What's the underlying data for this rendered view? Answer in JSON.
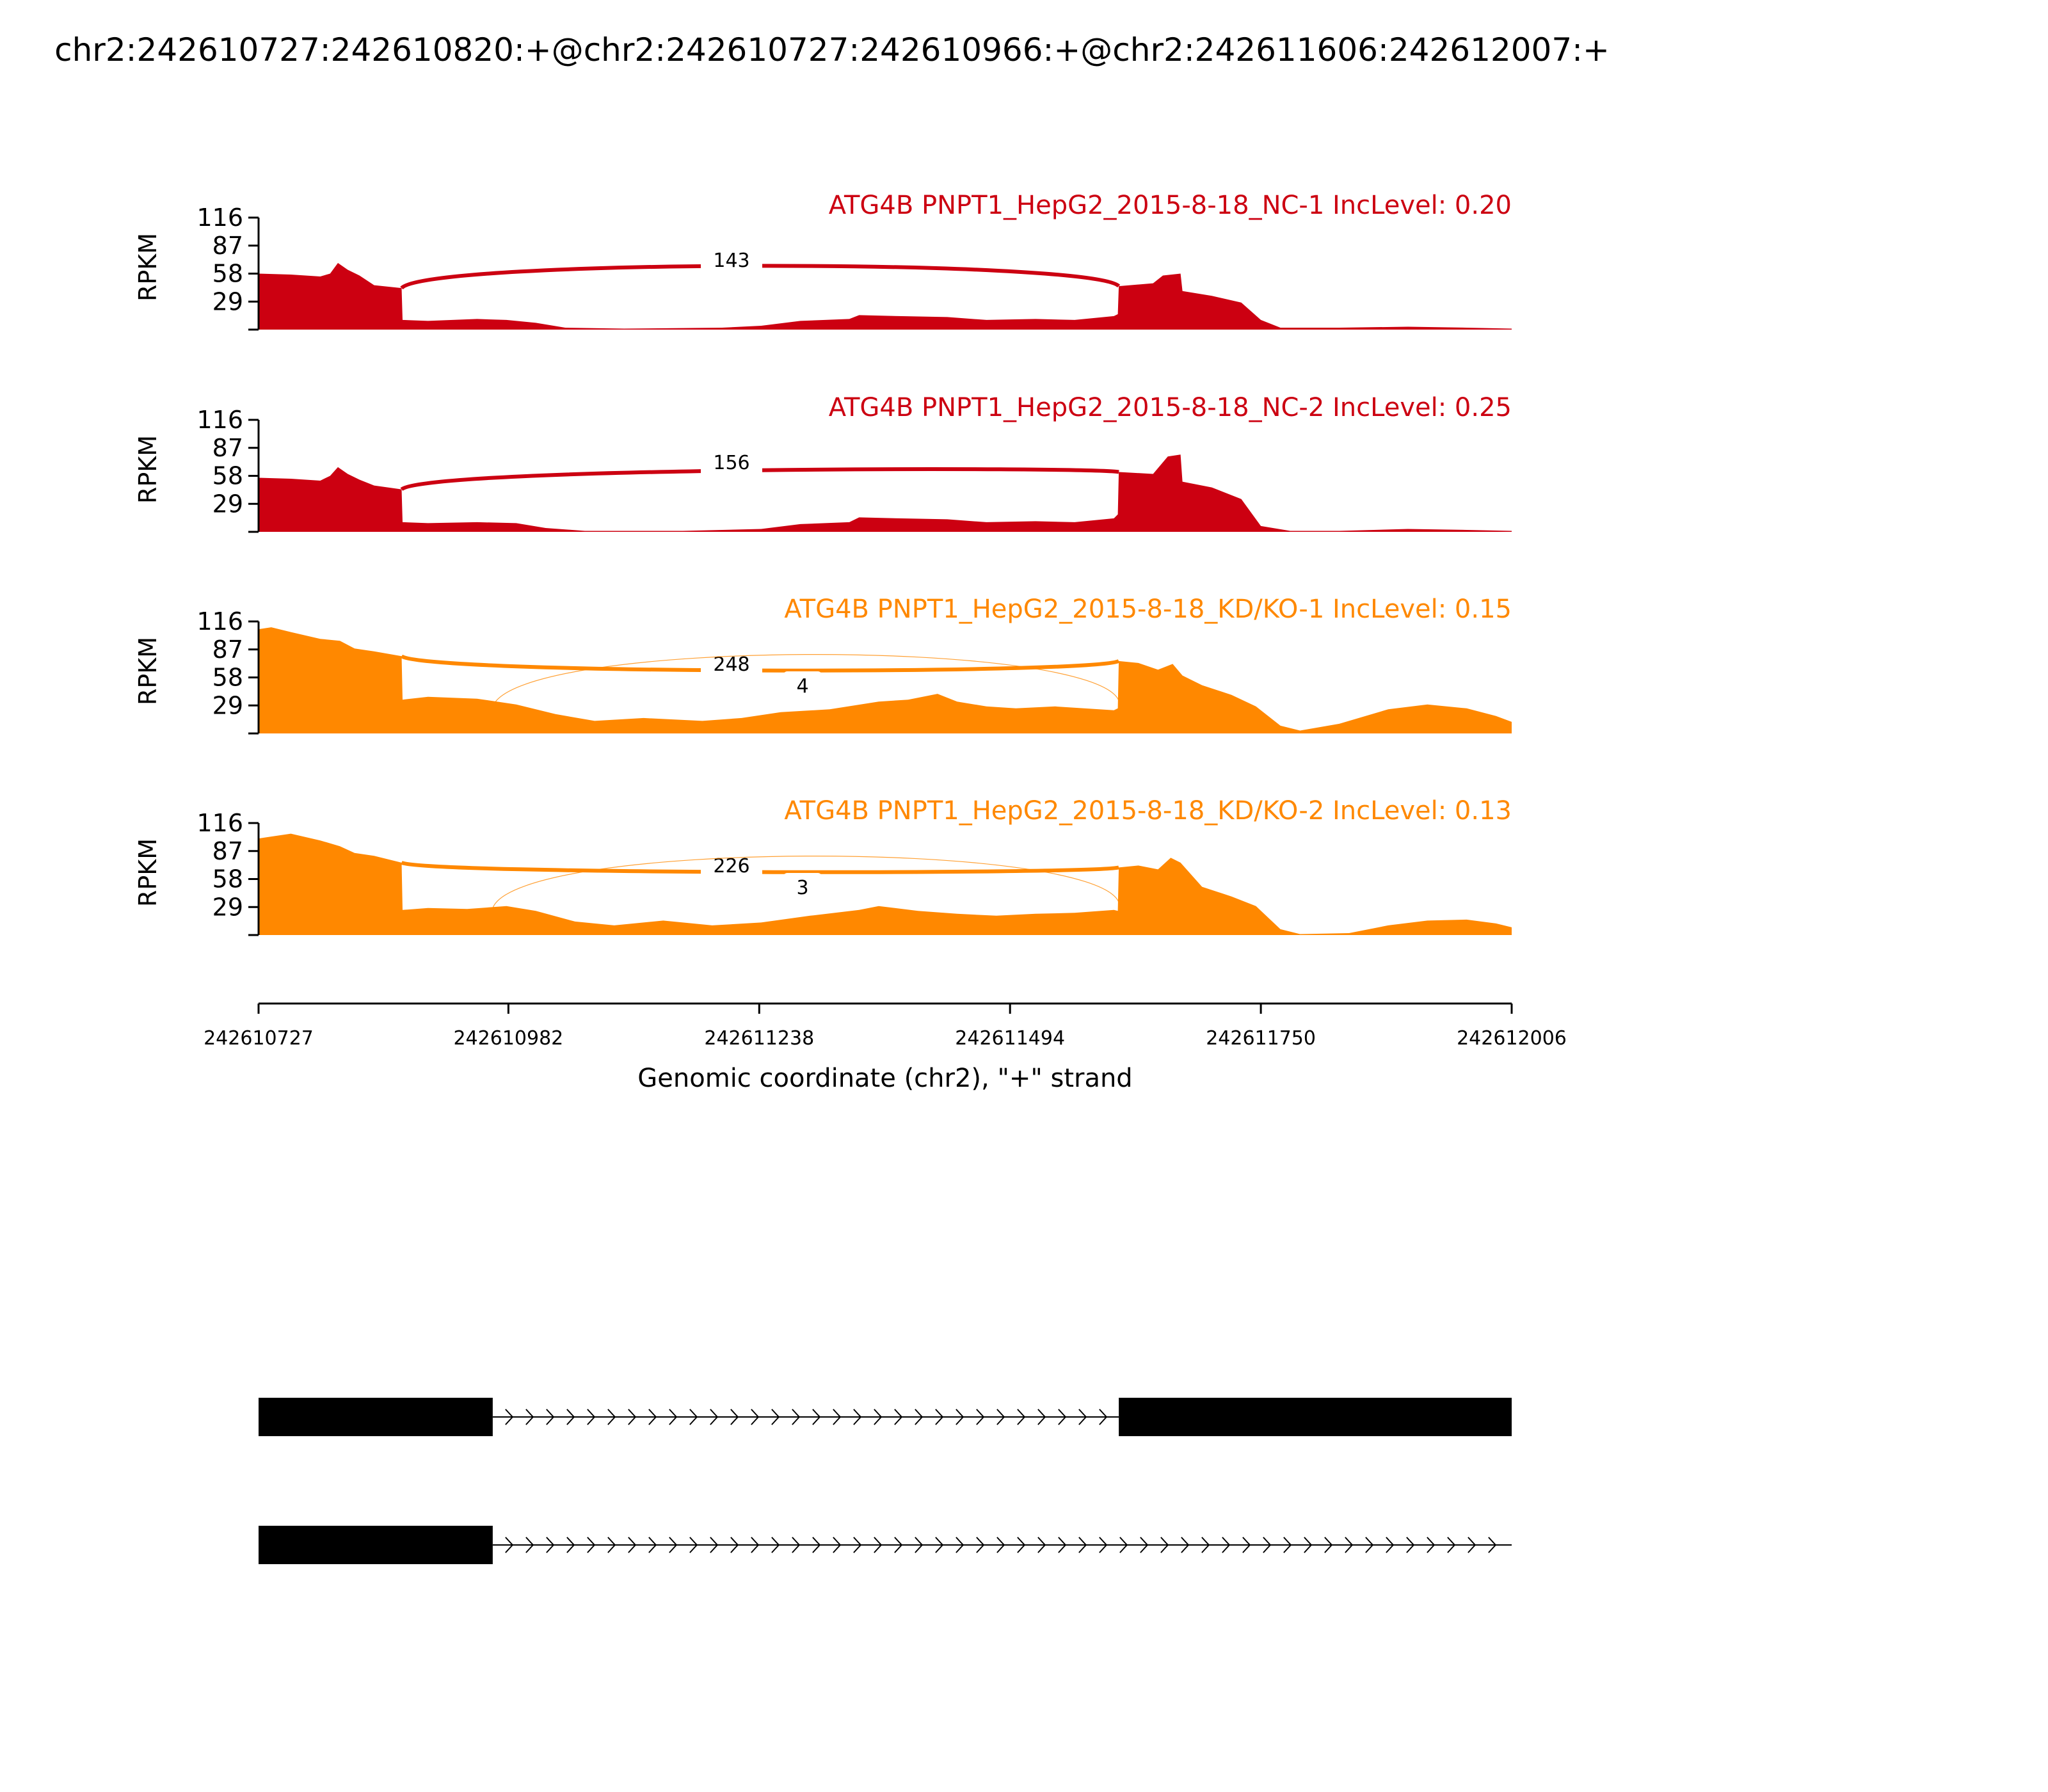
{
  "chart_data": {
    "type": "area",
    "title": "chr2:242610727:242610820:+@chr2:242610727:242610966:+@chr2:242611606:242612007:+",
    "ylabel": "RPKM",
    "xlabel": "Genomic coordinate (chr2), \"+\" strand",
    "xlim": [
      242610727,
      242612006
    ],
    "ylim": [
      0,
      116
    ],
    "yticks": [
      "116",
      "87",
      "58",
      "29"
    ],
    "xticks": [
      "242610727",
      "242610982",
      "242611238",
      "242611494",
      "242611750",
      "242612006"
    ],
    "colors": {
      "nc": "#cc0011",
      "kd": "#ff8800",
      "gene": "#000000"
    },
    "series": [
      {
        "name": "ATG4B PNPT1_HepG2_2015-8-18_NC-1 IncLevel: 0.20",
        "color": "#cc0011",
        "coverage": [
          [
            242610727,
            58
          ],
          [
            242610760,
            57
          ],
          [
            242610790,
            55
          ],
          [
            242610800,
            58
          ],
          [
            242610808,
            69
          ],
          [
            242610818,
            62
          ],
          [
            242610830,
            56
          ],
          [
            242610845,
            46
          ],
          [
            242610873,
            43
          ],
          [
            242610874,
            10
          ],
          [
            242610900,
            9
          ],
          [
            242610950,
            11
          ],
          [
            242610980,
            10
          ],
          [
            242611010,
            7
          ],
          [
            242611040,
            2
          ],
          [
            242611100,
            1
          ],
          [
            242611200,
            2
          ],
          [
            242611240,
            4
          ],
          [
            242611280,
            9
          ],
          [
            242611330,
            11
          ],
          [
            242611340,
            15
          ],
          [
            242611380,
            14
          ],
          [
            242611430,
            13
          ],
          [
            242611470,
            10
          ],
          [
            242611520,
            11
          ],
          [
            242611560,
            10
          ],
          [
            242611600,
            14
          ],
          [
            242611604,
            16
          ],
          [
            242611605,
            45
          ],
          [
            242611640,
            48
          ],
          [
            242611650,
            56
          ],
          [
            242611668,
            58
          ],
          [
            242611670,
            40
          ],
          [
            242611700,
            35
          ],
          [
            242611730,
            28
          ],
          [
            242611750,
            10
          ],
          [
            242611770,
            2
          ],
          [
            242611830,
            2
          ],
          [
            242611900,
            3
          ],
          [
            242611960,
            2
          ],
          [
            242612006,
            1
          ]
        ],
        "junctions": [
          {
            "start": 242610873,
            "end": 242611605,
            "count": "143"
          }
        ]
      },
      {
        "name": "ATG4B PNPT1_HepG2_2015-8-18_NC-2 IncLevel: 0.25",
        "color": "#cc0011",
        "coverage": [
          [
            242610727,
            56
          ],
          [
            242610760,
            55
          ],
          [
            242610790,
            53
          ],
          [
            242610800,
            58
          ],
          [
            242610808,
            67
          ],
          [
            242610818,
            60
          ],
          [
            242610830,
            54
          ],
          [
            242610845,
            48
          ],
          [
            242610873,
            44
          ],
          [
            242610874,
            10
          ],
          [
            242610900,
            9
          ],
          [
            242610950,
            10
          ],
          [
            242610990,
            9
          ],
          [
            242611020,
            4
          ],
          [
            242611060,
            1
          ],
          [
            242611160,
            1
          ],
          [
            242611240,
            3
          ],
          [
            242611280,
            8
          ],
          [
            242611330,
            10
          ],
          [
            242611340,
            15
          ],
          [
            242611380,
            14
          ],
          [
            242611430,
            13
          ],
          [
            242611470,
            10
          ],
          [
            242611520,
            11
          ],
          [
            242611560,
            10
          ],
          [
            242611600,
            14
          ],
          [
            242611604,
            18
          ],
          [
            242611605,
            62
          ],
          [
            242611640,
            60
          ],
          [
            242611655,
            78
          ],
          [
            242611668,
            80
          ],
          [
            242611670,
            52
          ],
          [
            242611700,
            46
          ],
          [
            242611730,
            34
          ],
          [
            242611750,
            6
          ],
          [
            242611780,
            1
          ],
          [
            242611830,
            1
          ],
          [
            242611900,
            3
          ],
          [
            242611960,
            2
          ],
          [
            242612006,
            1
          ]
        ],
        "junctions": [
          {
            "start": 242610873,
            "end": 242611605,
            "count": "156"
          }
        ]
      },
      {
        "name": "ATG4B PNPT1_HepG2_2015-8-18_KD/KO-1 IncLevel: 0.15",
        "color": "#ff8800",
        "coverage": [
          [
            242610727,
            108
          ],
          [
            242610740,
            110
          ],
          [
            242610760,
            105
          ],
          [
            242610790,
            98
          ],
          [
            242610810,
            96
          ],
          [
            242610825,
            88
          ],
          [
            242610845,
            85
          ],
          [
            242610873,
            80
          ],
          [
            242610874,
            35
          ],
          [
            242610900,
            38
          ],
          [
            242610950,
            36
          ],
          [
            242610990,
            30
          ],
          [
            242611030,
            20
          ],
          [
            242611070,
            13
          ],
          [
            242611120,
            16
          ],
          [
            242611180,
            13
          ],
          [
            242611220,
            16
          ],
          [
            242611260,
            22
          ],
          [
            242611310,
            25
          ],
          [
            242611360,
            33
          ],
          [
            242611390,
            35
          ],
          [
            242611420,
            41
          ],
          [
            242611440,
            33
          ],
          [
            242611470,
            28
          ],
          [
            242611500,
            26
          ],
          [
            242611540,
            28
          ],
          [
            242611600,
            24
          ],
          [
            242611604,
            26
          ],
          [
            242611605,
            75
          ],
          [
            242611625,
            73
          ],
          [
            242611645,
            66
          ],
          [
            242611660,
            72
          ],
          [
            242611670,
            60
          ],
          [
            242611690,
            50
          ],
          [
            242611720,
            40
          ],
          [
            242611745,
            28
          ],
          [
            242611770,
            8
          ],
          [
            242611790,
            3
          ],
          [
            242611830,
            10
          ],
          [
            242611880,
            25
          ],
          [
            242611920,
            30
          ],
          [
            242611960,
            26
          ],
          [
            242611990,
            18
          ],
          [
            242612006,
            12
          ]
        ],
        "junctions": [
          {
            "start": 242610873,
            "end": 242611605,
            "count": "248"
          },
          {
            "start": 242610966,
            "end": 242611605,
            "count": "4"
          }
        ]
      },
      {
        "name": "ATG4B PNPT1_HepG2_2015-8-18_KD/KO-2 IncLevel: 0.13",
        "color": "#ff8800",
        "coverage": [
          [
            242610727,
            100
          ],
          [
            242610740,
            102
          ],
          [
            242610760,
            105
          ],
          [
            242610790,
            98
          ],
          [
            242610810,
            92
          ],
          [
            242610825,
            85
          ],
          [
            242610845,
            82
          ],
          [
            242610873,
            75
          ],
          [
            242610874,
            26
          ],
          [
            242610900,
            28
          ],
          [
            242610940,
            27
          ],
          [
            242610980,
            30
          ],
          [
            242611010,
            25
          ],
          [
            242611050,
            14
          ],
          [
            242611090,
            10
          ],
          [
            242611140,
            15
          ],
          [
            242611190,
            10
          ],
          [
            242611240,
            13
          ],
          [
            242611290,
            20
          ],
          [
            242611340,
            26
          ],
          [
            242611360,
            30
          ],
          [
            242611400,
            25
          ],
          [
            242611440,
            22
          ],
          [
            242611480,
            20
          ],
          [
            242611520,
            22
          ],
          [
            242611560,
            23
          ],
          [
            242611600,
            26
          ],
          [
            242611604,
            25
          ],
          [
            242611605,
            70
          ],
          [
            242611625,
            72
          ],
          [
            242611645,
            68
          ],
          [
            242611658,
            80
          ],
          [
            242611668,
            75
          ],
          [
            242611690,
            50
          ],
          [
            242611720,
            40
          ],
          [
            242611745,
            30
          ],
          [
            242611770,
            6
          ],
          [
            242611790,
            1
          ],
          [
            242611840,
            2
          ],
          [
            242611880,
            10
          ],
          [
            242611920,
            15
          ],
          [
            242611960,
            16
          ],
          [
            242611990,
            12
          ],
          [
            242612006,
            8
          ]
        ],
        "junctions": [
          {
            "start": 242610873,
            "end": 242611605,
            "count": "226"
          },
          {
            "start": 242610966,
            "end": 242611605,
            "count": "3"
          }
        ]
      }
    ],
    "gene_models": [
      {
        "exons": [
          [
            242610727,
            242610966
          ],
          [
            242611605,
            242612006
          ]
        ]
      },
      {
        "exons": [
          [
            242610727,
            242610966
          ]
        ]
      }
    ]
  }
}
